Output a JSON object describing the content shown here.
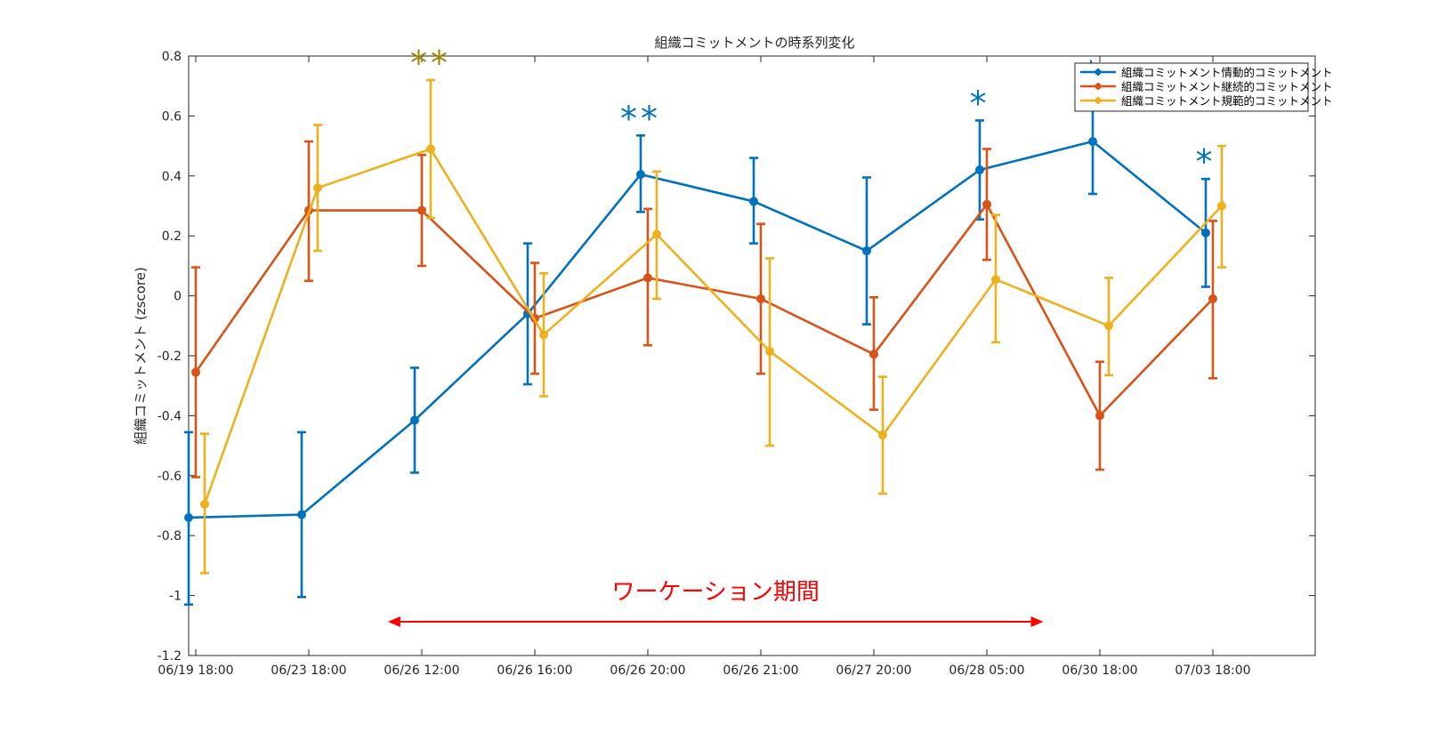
{
  "chart_data": {
    "type": "line",
    "title": "組織コミットメントの時系列変化",
    "xlabel": "",
    "ylabel": "組織コミットメント (zscore)",
    "ylim": [
      -1.2,
      0.8
    ],
    "yticks": [
      "0.8",
      "0.6",
      "0.4",
      "0.2",
      "0",
      "-0.2",
      "-0.4",
      "-0.6",
      "-0.8",
      "-1",
      "-1.2"
    ],
    "categories": [
      "06/19 18:00",
      "06/23 18:00",
      "06/26 12:00",
      "06/26 16:00",
      "06/26 20:00",
      "06/26 21:00",
      "06/27 20:00",
      "06/28 05:00",
      "06/30 18:00",
      "07/03 18:00"
    ],
    "legend_position": "top-right",
    "grid": false,
    "series": [
      {
        "name": "組織コミットメント情動的コミットメント",
        "color": "#0072BD",
        "values": [
          -0.74,
          -0.73,
          -0.415,
          -0.06,
          0.405,
          0.315,
          0.15,
          0.42,
          0.515,
          0.21
        ],
        "err_low": [
          -1.03,
          -1.005,
          -0.59,
          -0.295,
          0.28,
          0.175,
          -0.095,
          0.255,
          0.34,
          0.03
        ],
        "err_high": [
          -0.455,
          -0.455,
          -0.24,
          0.175,
          0.535,
          0.46,
          0.395,
          0.585,
          0.685,
          0.39
        ]
      },
      {
        "name": "組織コミットメント継続的コミットメント",
        "color": "#D95319",
        "values": [
          -0.255,
          0.285,
          0.285,
          -0.075,
          0.06,
          -0.01,
          -0.195,
          0.305,
          -0.4,
          -0.01
        ],
        "err_low": [
          -0.605,
          0.05,
          0.1,
          -0.26,
          -0.165,
          -0.26,
          -0.38,
          0.12,
          -0.58,
          -0.275
        ],
        "err_high": [
          0.095,
          0.515,
          0.47,
          0.11,
          0.29,
          0.24,
          -0.005,
          0.49,
          -0.22,
          0.25
        ]
      },
      {
        "name": "組織コミットメント規範的コミットメント",
        "color": "#EDB120",
        "values": [
          -0.695,
          0.36,
          0.49,
          -0.13,
          0.205,
          -0.185,
          -0.465,
          0.055,
          -0.1,
          0.3
        ],
        "err_low": [
          -0.925,
          0.15,
          0.26,
          -0.335,
          -0.01,
          -0.5,
          -0.66,
          -0.155,
          -0.265,
          0.095
        ],
        "err_high": [
          -0.46,
          0.57,
          0.72,
          0.075,
          0.415,
          0.125,
          -0.27,
          0.27,
          0.06,
          0.5
        ]
      }
    ],
    "annotations": {
      "significance": [
        {
          "text": "**",
          "color": "#A08200",
          "series": 2,
          "category": 2
        },
        {
          "text": "**",
          "color": "#0072BD",
          "series": 0,
          "category": 4
        },
        {
          "text": "*",
          "color": "#0072BD",
          "series": 0,
          "category": 7
        },
        {
          "text": "*",
          "color": "#0072BD",
          "series": 0,
          "category": 8
        },
        {
          "text": "*",
          "color": "#0072BD",
          "series": 0,
          "category": 9
        }
      ],
      "period": {
        "label": "ワーケーション期間",
        "color": "#FF0000",
        "from_category": 1.7,
        "to_category": 7.5
      }
    }
  }
}
